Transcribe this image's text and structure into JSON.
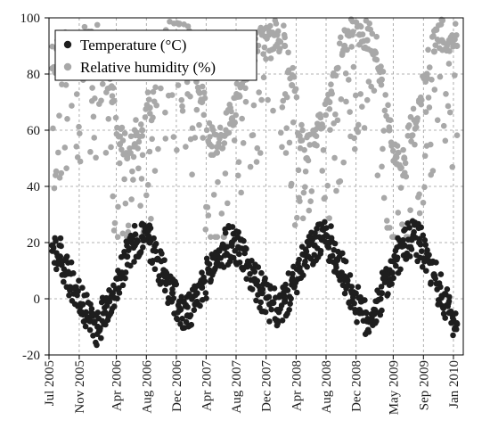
{
  "chart_data": {
    "type": "scatter",
    "title": "",
    "xlabel": "",
    "ylabel": "",
    "ylim": [
      -20,
      100
    ],
    "xlim": [
      "2005-07-01",
      "2010-02-10"
    ],
    "grid": true,
    "grid_style": "dashed",
    "legend_position": "top-left",
    "yticks": [
      "-20",
      "0",
      "20",
      "40",
      "60",
      "80",
      "100"
    ],
    "xticks": [
      {
        "date": "2005-07-01",
        "label": "Jul 2005"
      },
      {
        "date": "2005-11-01",
        "label": "Nov 2005"
      },
      {
        "date": "2006-04-01",
        "label": "Apr 2006"
      },
      {
        "date": "2006-08-01",
        "label": "Aug 2006"
      },
      {
        "date": "2006-12-01",
        "label": "Dec 2006"
      },
      {
        "date": "2007-04-01",
        "label": "Apr 2007"
      },
      {
        "date": "2007-08-01",
        "label": "Aug 2007"
      },
      {
        "date": "2007-12-01",
        "label": "Dec 2007"
      },
      {
        "date": "2008-04-01",
        "label": "Apr 2008"
      },
      {
        "date": "2008-08-01",
        "label": "Aug 2008"
      },
      {
        "date": "2008-12-01",
        "label": "Dec 2008"
      },
      {
        "date": "2009-05-01",
        "label": "May 2009"
      },
      {
        "date": "2009-09-01",
        "label": "Sep 2009"
      },
      {
        "date": "2010-01-01",
        "label": "Jan 2010"
      }
    ],
    "series": [
      {
        "name": "Temperature (°C)",
        "color": "#1e1e1e",
        "marker": "circle",
        "x": [
          "2005-07-15",
          "2005-08-15",
          "2005-09-15",
          "2005-10-15",
          "2005-11-15",
          "2005-12-15",
          "2006-01-15",
          "2006-02-15",
          "2006-03-15",
          "2006-04-15",
          "2006-05-15",
          "2006-06-15",
          "2006-07-15",
          "2006-08-15",
          "2006-09-15",
          "2006-10-15",
          "2006-11-15",
          "2006-12-15",
          "2007-01-15",
          "2007-02-15",
          "2007-03-15",
          "2007-04-15",
          "2007-05-15",
          "2007-06-15",
          "2007-07-15",
          "2007-08-15",
          "2007-09-15",
          "2007-10-15",
          "2007-11-15",
          "2007-12-15",
          "2008-01-15",
          "2008-02-15",
          "2008-03-15",
          "2008-04-15",
          "2008-05-15",
          "2008-06-15",
          "2008-07-15",
          "2008-08-15",
          "2008-09-15",
          "2008-10-15",
          "2008-11-15",
          "2008-12-15",
          "2009-01-15",
          "2009-02-15",
          "2009-03-15",
          "2009-04-15",
          "2009-05-15",
          "2009-06-15",
          "2009-07-15",
          "2009-08-15",
          "2009-09-15",
          "2009-10-15",
          "2009-11-15",
          "2009-12-15",
          "2010-01-15"
        ],
        "y": [
          19,
          15,
          9,
          4,
          -2,
          -8,
          -10,
          -5,
          2,
          9,
          15,
          19,
          22,
          20,
          14,
          8,
          2,
          -4,
          -6,
          -2,
          4,
          10,
          14,
          18,
          20,
          18,
          12,
          7,
          2,
          -2,
          -4,
          -1,
          5,
          10,
          15,
          19,
          21,
          20,
          14,
          8,
          2,
          -4,
          -8,
          -4,
          2,
          9,
          14,
          19,
          21,
          20,
          14,
          8,
          1,
          -5,
          -9
        ],
        "spread": 7
      },
      {
        "name": "Relative humidity (%)",
        "color": "#a8a8a8",
        "marker": "circle",
        "x": [
          "2005-07-15",
          "2005-08-15",
          "2005-09-15",
          "2005-10-15",
          "2005-11-15",
          "2005-12-15",
          "2006-01-15",
          "2006-02-15",
          "2006-03-15",
          "2006-04-15",
          "2006-05-15",
          "2006-06-15",
          "2006-07-15",
          "2006-08-15",
          "2006-09-15",
          "2006-10-15",
          "2006-11-15",
          "2006-12-15",
          "2007-01-15",
          "2007-02-15",
          "2007-03-15",
          "2007-04-15",
          "2007-05-15",
          "2007-06-15",
          "2007-07-15",
          "2007-08-15",
          "2007-09-15",
          "2007-10-15",
          "2007-11-15",
          "2007-12-15",
          "2008-01-15",
          "2008-02-15",
          "2008-03-15",
          "2008-04-15",
          "2008-05-15",
          "2008-06-15",
          "2008-07-15",
          "2008-08-15",
          "2008-09-15",
          "2008-10-15",
          "2008-11-15",
          "2008-12-15",
          "2009-01-15",
          "2009-02-15",
          "2009-03-15",
          "2009-04-15",
          "2009-05-15",
          "2009-06-15",
          "2009-07-15",
          "2009-08-15",
          "2009-09-15",
          "2009-10-15",
          "2009-11-15",
          "2009-12-15",
          "2010-01-15"
        ],
        "y": [
          82,
          86,
          88,
          90,
          92,
          92,
          90,
          85,
          70,
          55,
          50,
          55,
          60,
          68,
          80,
          88,
          92,
          94,
          92,
          86,
          70,
          55,
          52,
          58,
          64,
          72,
          82,
          90,
          94,
          95,
          94,
          90,
          76,
          58,
          50,
          55,
          62,
          70,
          82,
          90,
          94,
          94,
          92,
          88,
          78,
          60,
          48,
          50,
          58,
          70,
          80,
          88,
          92,
          92,
          90
        ],
        "spread": 14
      }
    ]
  }
}
